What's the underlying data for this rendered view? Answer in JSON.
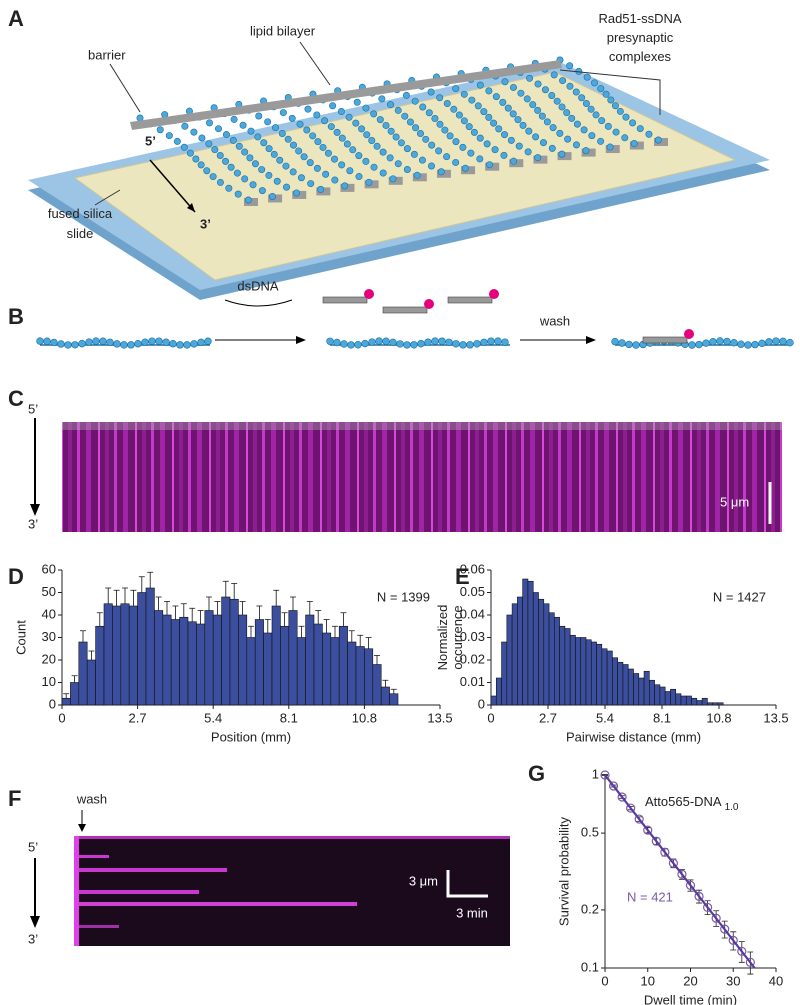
{
  "labels": {
    "panel_a": "A",
    "barrier": "barrier",
    "lipid_bilayer": "lipid bilayer",
    "rad51": [
      "Rad51-ssDNA",
      "presynaptic",
      "complexes"
    ],
    "a_5": "5’",
    "a_3": "3’",
    "slide": [
      "fused silica",
      "slide"
    ],
    "panel_b": "B",
    "dsdna": "dsDNA",
    "wash_b": "wash",
    "panel_c": "C",
    "c_5": "5’",
    "c_3": "3’",
    "c_scale": "5 μm",
    "panel_d": "D",
    "panel_e": "E",
    "panel_f": "F",
    "wash_f": "wash",
    "f_5": "5’",
    "f_3": "3’",
    "f_scale_y": "3 μm",
    "f_scale_x": "3 min",
    "panel_g": "G"
  },
  "chart_data": [
    {
      "type": "histogram",
      "xlabel": "Position (mm)",
      "ylabel": [
        "Count"
      ],
      "annotation": "N = 1399",
      "color": "#3c4f9e",
      "bins": [
        0,
        0.3,
        0.6,
        0.9,
        1.2,
        1.5,
        1.8,
        2.1,
        2.4,
        2.7,
        3,
        3.3,
        3.6,
        3.9,
        4.2,
        4.5,
        4.8,
        5.1,
        5.4,
        5.7,
        6,
        6.3,
        6.6,
        6.9,
        7.2,
        7.5,
        7.8,
        8.1,
        8.4,
        8.7,
        9,
        9.3,
        9.6,
        9.9,
        10.2,
        10.5,
        10.8,
        11.1,
        11.4,
        11.7,
        12
      ],
      "values": [
        3,
        10,
        28,
        20,
        35,
        45,
        44,
        45,
        44,
        50,
        52,
        42,
        40,
        38,
        39,
        37,
        36,
        42,
        40,
        48,
        47,
        40,
        30,
        38,
        32,
        44,
        35,
        42,
        30,
        40,
        36,
        32,
        30,
        35,
        28,
        26,
        25,
        18,
        8,
        5
      ],
      "errors": [
        2,
        3,
        5,
        4,
        6,
        7,
        7,
        7,
        7,
        7,
        7,
        6,
        6,
        6,
        6,
        6,
        6,
        6,
        6,
        7,
        7,
        6,
        5,
        6,
        6,
        7,
        6,
        6,
        5,
        6,
        6,
        6,
        5,
        6,
        5,
        5,
        5,
        4,
        3,
        2
      ],
      "xlim": [
        0,
        13.5
      ],
      "xticks": [
        0,
        2.7,
        5.4,
        8.1,
        10.8,
        13.5
      ],
      "ylim": [
        0,
        60
      ],
      "yticks": [
        0,
        10,
        20,
        30,
        40,
        50,
        60
      ]
    },
    {
      "type": "histogram",
      "xlabel": "Pairwise distance (mm)",
      "ylabel": [
        "Normalized",
        "occurrence"
      ],
      "annotation": "N = 1427",
      "color": "#3c4f9e",
      "bins": [
        0,
        0.25,
        0.5,
        0.75,
        1,
        1.25,
        1.5,
        1.75,
        2,
        2.25,
        2.5,
        2.75,
        3,
        3.25,
        3.5,
        3.75,
        4,
        4.25,
        4.5,
        4.75,
        5,
        5.25,
        5.5,
        5.75,
        6,
        6.25,
        6.5,
        6.75,
        7,
        7.25,
        7.5,
        7.75,
        8,
        8.25,
        8.5,
        8.75,
        9,
        9.25,
        9.5,
        9.75,
        10,
        10.25,
        10.5,
        10.75,
        11
      ],
      "values": [
        0.004,
        0.012,
        0.028,
        0.04,
        0.045,
        0.048,
        0.056,
        0.055,
        0.05,
        0.047,
        0.045,
        0.041,
        0.039,
        0.035,
        0.034,
        0.031,
        0.03,
        0.03,
        0.029,
        0.028,
        0.027,
        0.025,
        0.024,
        0.021,
        0.019,
        0.018,
        0.016,
        0.014,
        0.012,
        0.015,
        0.011,
        0.009,
        0.008,
        0.006,
        0.007,
        0.005,
        0.004,
        0.004,
        0.003,
        0.002,
        0.003,
        0.001,
        0.001,
        0.001
      ],
      "xlim": [
        0,
        13.5
      ],
      "xticks": [
        0,
        2.7,
        5.4,
        8.1,
        10.8,
        13.5
      ],
      "ylim": [
        0,
        0.06
      ],
      "yticks": [
        0,
        0.01,
        0.02,
        0.03,
        0.04,
        0.05,
        0.06
      ]
    },
    {
      "type": "scatter",
      "xlabel": "Dwell time (min)",
      "ylabel": [
        "Survival probability"
      ],
      "annotation": "Atto565-DNA",
      "annotation_sub": "1.0",
      "n_label": "N = 421",
      "ylog": true,
      "series": [
        {
          "style": "points",
          "color": "#7a5aa8",
          "x": [
            0,
            2,
            4,
            6,
            8,
            10,
            12,
            14,
            16,
            18,
            20,
            22,
            24,
            26,
            28,
            30,
            32,
            34
          ],
          "values": [
            1,
            0.877,
            0.769,
            0.674,
            0.591,
            0.518,
            0.454,
            0.398,
            0.349,
            0.306,
            0.268,
            0.235,
            0.206,
            0.181,
            0.159,
            0.139,
            0.122,
            0.107
          ],
          "errors": [
            0.005,
            0.01,
            0.012,
            0.014,
            0.016,
            0.017,
            0.018,
            0.018,
            0.018,
            0.018,
            0.018,
            0.018,
            0.017,
            0.017,
            0.016,
            0.015,
            0.015,
            0.014
          ]
        },
        {
          "style": "line",
          "color": "#5a3aa0",
          "x": [
            0,
            35
          ],
          "values": [
            1,
            0.1
          ]
        }
      ],
      "xlim": [
        0,
        40
      ],
      "xticks": [
        0,
        10,
        20,
        30,
        40
      ],
      "ylim": [
        0.1,
        1
      ],
      "yticks": [
        0.1,
        0.2,
        0.5,
        1
      ]
    }
  ]
}
